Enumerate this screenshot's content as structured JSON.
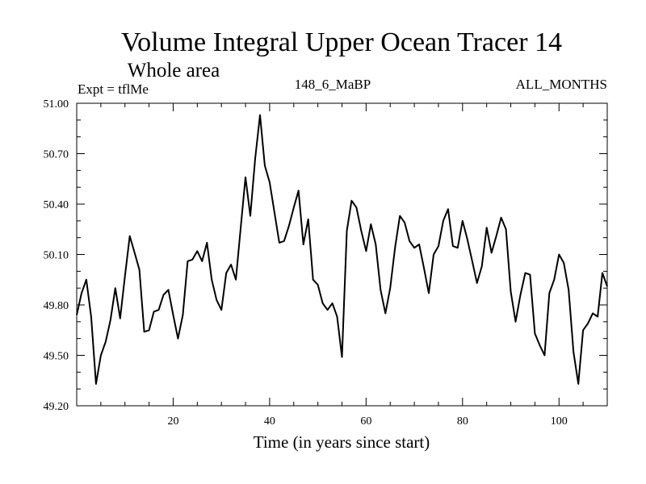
{
  "chart_data": {
    "type": "line",
    "title": "Volume Integral Upper Ocean Tracer 14",
    "subtitle": "Whole area",
    "experiment_label": "Expt = tflMe",
    "center_label": "148_6_MaBP",
    "right_label": "ALL_MONTHS",
    "xlabel": "Time (in years since start)",
    "ylabel": "",
    "xlim": [
      0,
      110
    ],
    "ylim": [
      49.2,
      51.0
    ],
    "x_ticks": [
      20,
      40,
      60,
      80,
      100
    ],
    "x_tick_labels": [
      "20",
      "40",
      "60",
      "80",
      "100"
    ],
    "y_ticks": [
      49.2,
      49.5,
      49.8,
      50.1,
      50.4,
      50.7,
      51.0
    ],
    "y_tick_labels": [
      "49.20",
      "49.50",
      "49.80",
      "50.10",
      "50.40",
      "50.70",
      "51.00"
    ],
    "grid": false,
    "series": [
      {
        "name": "Volume Integral Upper Ocean Tracer 14",
        "x": [
          0,
          1,
          2,
          3,
          4,
          5,
          6,
          7,
          8,
          9,
          10,
          11,
          12,
          13,
          14,
          15,
          16,
          17,
          18,
          19,
          20,
          21,
          22,
          23,
          24,
          25,
          26,
          27,
          28,
          29,
          30,
          31,
          32,
          33,
          34,
          35,
          36,
          37,
          38,
          39,
          40,
          41,
          42,
          43,
          44,
          45,
          46,
          47,
          48,
          49,
          50,
          51,
          52,
          53,
          54,
          55,
          56,
          57,
          58,
          59,
          60,
          61,
          62,
          63,
          64,
          65,
          66,
          67,
          68,
          69,
          70,
          71,
          72,
          73,
          74,
          75,
          76,
          77,
          78,
          79,
          80,
          81,
          82,
          83,
          84,
          85,
          86,
          87,
          88,
          89,
          90,
          91,
          92,
          93,
          94,
          95,
          96,
          97,
          98,
          99,
          100,
          101,
          102,
          103,
          104,
          105,
          106,
          107,
          108,
          109,
          110
        ],
        "y": [
          49.74,
          49.87,
          49.95,
          49.73,
          49.33,
          49.5,
          49.58,
          49.71,
          49.9,
          49.72,
          49.97,
          50.21,
          50.11,
          50.01,
          49.64,
          49.65,
          49.76,
          49.77,
          49.86,
          49.89,
          49.74,
          49.6,
          49.74,
          50.06,
          50.07,
          50.12,
          50.06,
          50.17,
          49.95,
          49.83,
          49.77,
          49.99,
          50.04,
          49.95,
          50.26,
          50.56,
          50.33,
          50.67,
          50.93,
          50.63,
          50.53,
          50.35,
          50.17,
          50.18,
          50.27,
          50.38,
          50.48,
          50.16,
          50.31,
          49.95,
          49.92,
          49.81,
          49.77,
          49.81,
          49.73,
          49.49,
          50.24,
          50.42,
          50.38,
          50.24,
          50.12,
          50.28,
          50.16,
          49.89,
          49.75,
          49.9,
          50.14,
          50.33,
          50.29,
          50.18,
          50.14,
          50.16,
          50.02,
          49.87,
          50.1,
          50.15,
          50.3,
          50.37,
          50.15,
          50.14,
          50.3,
          50.19,
          50.06,
          49.93,
          50.03,
          50.26,
          50.11,
          50.21,
          50.32,
          50.25,
          49.88,
          49.7,
          49.86,
          49.99,
          49.98,
          49.63,
          49.56,
          49.5,
          49.87,
          49.95,
          50.1,
          50.05,
          49.89,
          49.52,
          49.33,
          49.65,
          49.69,
          49.75,
          49.73,
          49.99,
          49.91
        ]
      }
    ]
  }
}
